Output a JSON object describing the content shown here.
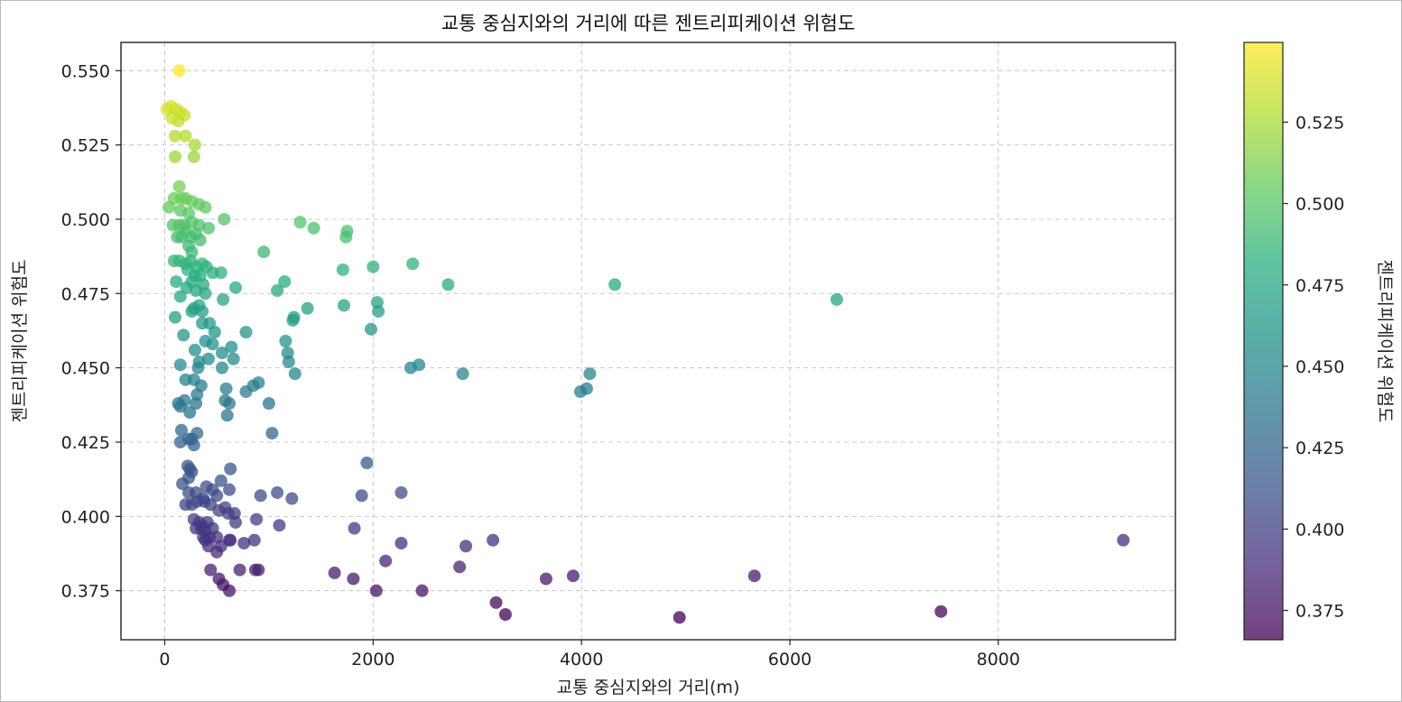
{
  "chart_data": {
    "type": "scatter",
    "title": "교통 중심지와의 거리에 따른 젠트리피케이션 위험도",
    "xlabel": "교통 중심지와의 거리(m)",
    "ylabel": "젠트리피케이션 위험도",
    "xlim": [
      -420,
      9700
    ],
    "ylim": [
      0.3585,
      0.5595
    ],
    "xticks": [
      0,
      2000,
      4000,
      6000,
      8000
    ],
    "yticks": [
      0.375,
      0.4,
      0.425,
      0.45,
      0.475,
      0.5,
      0.525,
      0.55
    ],
    "grid": true,
    "colormap": "viridis",
    "alpha": 0.75,
    "colorbar": {
      "label": "젠트리피케이션 위험도",
      "range": [
        0.366,
        0.5495
      ],
      "ticks": [
        0.375,
        0.4,
        0.425,
        0.45,
        0.475,
        0.5,
        0.525
      ]
    },
    "points": [
      [
        140,
        0.55
      ],
      [
        20,
        0.537
      ],
      [
        60,
        0.538
      ],
      [
        110,
        0.537
      ],
      [
        150,
        0.536
      ],
      [
        190,
        0.535
      ],
      [
        130,
        0.533
      ],
      [
        70,
        0.534
      ],
      [
        100,
        0.528
      ],
      [
        200,
        0.528
      ],
      [
        290,
        0.525
      ],
      [
        100,
        0.521
      ],
      [
        280,
        0.521
      ],
      [
        140,
        0.511
      ],
      [
        90,
        0.507
      ],
      [
        160,
        0.507
      ],
      [
        200,
        0.507
      ],
      [
        260,
        0.506
      ],
      [
        330,
        0.505
      ],
      [
        390,
        0.504
      ],
      [
        40,
        0.504
      ],
      [
        150,
        0.503
      ],
      [
        230,
        0.502
      ],
      [
        570,
        0.5
      ],
      [
        80,
        0.498
      ],
      [
        140,
        0.498
      ],
      [
        190,
        0.498
      ],
      [
        260,
        0.499
      ],
      [
        330,
        0.498
      ],
      [
        420,
        0.497
      ],
      [
        200,
        0.496
      ],
      [
        300,
        0.495
      ],
      [
        120,
        0.494
      ],
      [
        160,
        0.494
      ],
      [
        250,
        0.494
      ],
      [
        340,
        0.493
      ],
      [
        230,
        0.491
      ],
      [
        260,
        0.489
      ],
      [
        950,
        0.489
      ],
      [
        1300,
        0.499
      ],
      [
        1430,
        0.497
      ],
      [
        1750,
        0.496
      ],
      [
        1740,
        0.494
      ],
      [
        90,
        0.486
      ],
      [
        140,
        0.486
      ],
      [
        200,
        0.485
      ],
      [
        250,
        0.486
      ],
      [
        300,
        0.484
      ],
      [
        360,
        0.485
      ],
      [
        400,
        0.484
      ],
      [
        460,
        0.482
      ],
      [
        540,
        0.482
      ],
      [
        220,
        0.483
      ],
      [
        290,
        0.481
      ],
      [
        340,
        0.481
      ],
      [
        260,
        0.479
      ],
      [
        370,
        0.478
      ],
      [
        2000,
        0.484
      ],
      [
        2380,
        0.485
      ],
      [
        1710,
        0.483
      ],
      [
        110,
        0.479
      ],
      [
        150,
        0.474
      ],
      [
        210,
        0.477
      ],
      [
        300,
        0.476
      ],
      [
        390,
        0.475
      ],
      [
        1150,
        0.479
      ],
      [
        1080,
        0.476
      ],
      [
        680,
        0.477
      ],
      [
        2720,
        0.478
      ],
      [
        4320,
        0.478
      ],
      [
        6450,
        0.473
      ],
      [
        330,
        0.471
      ],
      [
        280,
        0.47
      ],
      [
        360,
        0.469
      ],
      [
        260,
        0.469
      ],
      [
        560,
        0.473
      ],
      [
        1370,
        0.47
      ],
      [
        1240,
        0.467
      ],
      [
        1230,
        0.466
      ],
      [
        1720,
        0.471
      ],
      [
        2040,
        0.472
      ],
      [
        2050,
        0.469
      ],
      [
        100,
        0.467
      ],
      [
        360,
        0.465
      ],
      [
        430,
        0.465
      ],
      [
        480,
        0.462
      ],
      [
        390,
        0.459
      ],
      [
        460,
        0.458
      ],
      [
        550,
        0.455
      ],
      [
        640,
        0.457
      ],
      [
        780,
        0.462
      ],
      [
        1160,
        0.459
      ],
      [
        1180,
        0.455
      ],
      [
        1980,
        0.463
      ],
      [
        180,
        0.461
      ],
      [
        290,
        0.456
      ],
      [
        420,
        0.453
      ],
      [
        330,
        0.452
      ],
      [
        320,
        0.45
      ],
      [
        550,
        0.45
      ],
      [
        660,
        0.453
      ],
      [
        1190,
        0.452
      ],
      [
        1250,
        0.448
      ],
      [
        2360,
        0.45
      ],
      [
        2440,
        0.451
      ],
      [
        2860,
        0.448
      ],
      [
        150,
        0.451
      ],
      [
        200,
        0.446
      ],
      [
        280,
        0.446
      ],
      [
        350,
        0.444
      ],
      [
        310,
        0.441
      ],
      [
        590,
        0.443
      ],
      [
        780,
        0.442
      ],
      [
        850,
        0.444
      ],
      [
        900,
        0.445
      ],
      [
        1000,
        0.438
      ],
      [
        3990,
        0.442
      ],
      [
        4050,
        0.443
      ],
      [
        4080,
        0.448
      ],
      [
        130,
        0.438
      ],
      [
        150,
        0.437
      ],
      [
        190,
        0.439
      ],
      [
        240,
        0.435
      ],
      [
        300,
        0.438
      ],
      [
        580,
        0.439
      ],
      [
        620,
        0.438
      ],
      [
        600,
        0.434
      ],
      [
        1030,
        0.428
      ],
      [
        160,
        0.429
      ],
      [
        230,
        0.426
      ],
      [
        150,
        0.425
      ],
      [
        260,
        0.426
      ],
      [
        310,
        0.428
      ],
      [
        280,
        0.424
      ],
      [
        220,
        0.417
      ],
      [
        240,
        0.416
      ],
      [
        260,
        0.415
      ],
      [
        230,
        0.413
      ],
      [
        630,
        0.416
      ],
      [
        1940,
        0.418
      ],
      [
        2270,
        0.408
      ],
      [
        1890,
        0.407
      ],
      [
        1080,
        0.408
      ],
      [
        920,
        0.407
      ],
      [
        1220,
        0.406
      ],
      [
        170,
        0.411
      ],
      [
        230,
        0.408
      ],
      [
        300,
        0.408
      ],
      [
        370,
        0.406
      ],
      [
        400,
        0.41
      ],
      [
        460,
        0.409
      ],
      [
        540,
        0.412
      ],
      [
        500,
        0.407
      ],
      [
        620,
        0.409
      ],
      [
        200,
        0.404
      ],
      [
        260,
        0.404
      ],
      [
        310,
        0.405
      ],
      [
        380,
        0.405
      ],
      [
        440,
        0.404
      ],
      [
        520,
        0.402
      ],
      [
        580,
        0.403
      ],
      [
        610,
        0.401
      ],
      [
        670,
        0.401
      ],
      [
        280,
        0.399
      ],
      [
        330,
        0.398
      ],
      [
        360,
        0.397
      ],
      [
        410,
        0.398
      ],
      [
        460,
        0.396
      ],
      [
        300,
        0.396
      ],
      [
        350,
        0.396
      ],
      [
        390,
        0.395
      ],
      [
        430,
        0.393
      ],
      [
        500,
        0.393
      ],
      [
        620,
        0.392
      ],
      [
        680,
        0.398
      ],
      [
        880,
        0.399
      ],
      [
        1100,
        0.397
      ],
      [
        1820,
        0.396
      ],
      [
        370,
        0.393
      ],
      [
        390,
        0.392
      ],
      [
        420,
        0.39
      ],
      [
        540,
        0.39
      ],
      [
        630,
        0.392
      ],
      [
        760,
        0.391
      ],
      [
        860,
        0.392
      ],
      [
        500,
        0.388
      ],
      [
        2270,
        0.391
      ],
      [
        2890,
        0.39
      ],
      [
        3150,
        0.392
      ],
      [
        9200,
        0.392
      ],
      [
        440,
        0.382
      ],
      [
        720,
        0.382
      ],
      [
        870,
        0.382
      ],
      [
        900,
        0.382
      ],
      [
        1630,
        0.381
      ],
      [
        1810,
        0.379
      ],
      [
        520,
        0.379
      ],
      [
        560,
        0.377
      ],
      [
        620,
        0.375
      ],
      [
        2120,
        0.385
      ],
      [
        2830,
        0.383
      ],
      [
        3660,
        0.379
      ],
      [
        3920,
        0.38
      ],
      [
        5660,
        0.38
      ],
      [
        2030,
        0.375
      ],
      [
        2470,
        0.375
      ],
      [
        3180,
        0.371
      ],
      [
        3270,
        0.367
      ],
      [
        4940,
        0.366
      ],
      [
        7450,
        0.368
      ]
    ]
  }
}
